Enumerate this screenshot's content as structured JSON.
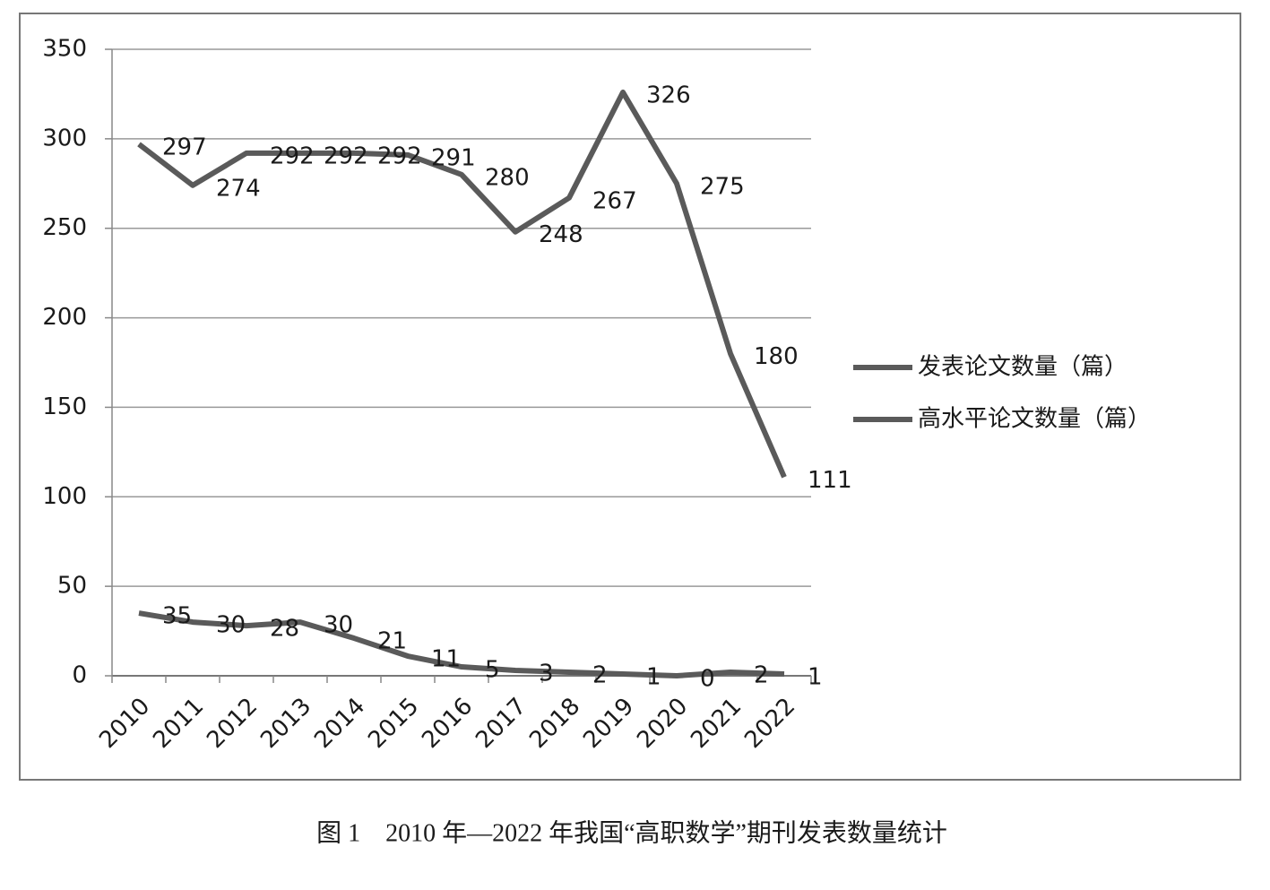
{
  "chart_data": {
    "type": "line",
    "caption": "图 1　2010 年—2022 年我国“高职数学”期刊发表数量统计",
    "categories": [
      "2010",
      "2011",
      "2012",
      "2013",
      "2014",
      "2015",
      "2016",
      "2017",
      "2018",
      "2019",
      "2020",
      "2021",
      "2022"
    ],
    "series": [
      {
        "name": "发表论文数量（篇）",
        "color": "#5a5a5a",
        "values": [
          297,
          274,
          292,
          292,
          292,
          291,
          280,
          248,
          267,
          326,
          275,
          180,
          111
        ]
      },
      {
        "name": "高水平论文数量（篇）",
        "color": "#5a5a5a",
        "values": [
          35,
          30,
          28,
          30,
          21,
          11,
          5,
          3,
          2,
          1,
          0,
          2,
          1
        ]
      }
    ],
    "ylim": [
      0,
      350
    ],
    "yticks": [
      0,
      50,
      100,
      150,
      200,
      250,
      300,
      350
    ],
    "grid": true,
    "legend": "right"
  }
}
